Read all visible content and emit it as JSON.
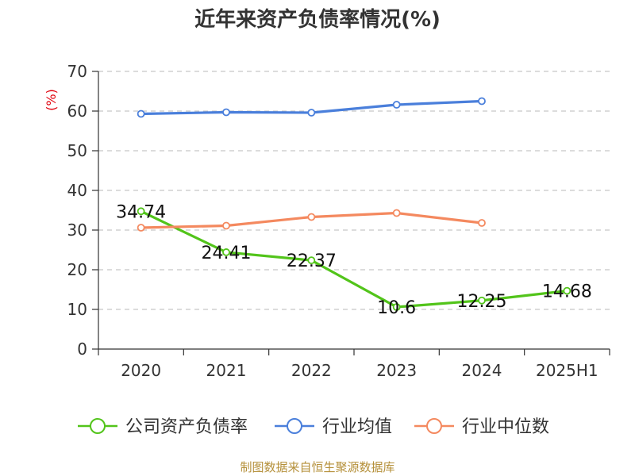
{
  "title": "近年来资产负债率情况(%)",
  "source": "制图数据来自恒生聚源数据库",
  "chart_data": {
    "type": "line",
    "title": "近年来资产负债率情况(%)",
    "ylabel": "(%)",
    "ylim": [
      0,
      70
    ],
    "yticks": [
      "0",
      "10",
      "20",
      "30",
      "40",
      "50",
      "60",
      "70"
    ],
    "grid": true,
    "legend_position": "bottom",
    "categories": [
      "2020",
      "2021",
      "2022",
      "2023",
      "2024",
      "2025H1"
    ],
    "series": [
      {
        "name": "公司资产负债率",
        "color": "#52c41a",
        "values": [
          34.74,
          24.41,
          22.37,
          10.6,
          12.25,
          14.68
        ],
        "labels": [
          "34.74",
          "24.41",
          "22.37",
          "10.6",
          "12.25",
          "14.68"
        ]
      },
      {
        "name": "行业均值",
        "color": "#4a7fdb",
        "values": [
          59.3,
          59.7,
          59.6,
          61.6,
          62.5,
          null
        ]
      },
      {
        "name": "行业中位数",
        "color": "#f4895f",
        "values": [
          30.6,
          31.1,
          33.3,
          34.3,
          31.8,
          null
        ]
      }
    ]
  }
}
